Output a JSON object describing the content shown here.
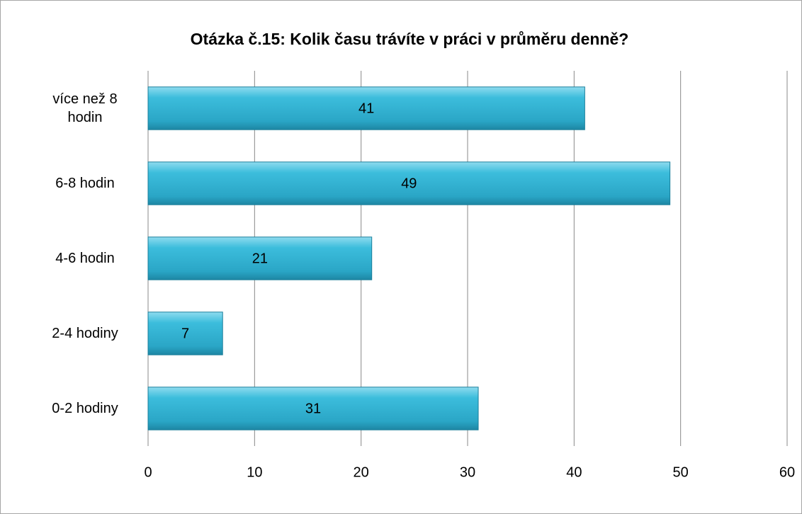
{
  "chart_data": {
    "type": "bar",
    "orientation": "horizontal",
    "title": "Otázka č.15: Kolik času trávíte v práci v průměru denně?",
    "categories": [
      "více než 8 hodin",
      "6-8 hodin",
      "4-6 hodin",
      "2-4 hodiny",
      "0-2 hodiny"
    ],
    "values": [
      41,
      49,
      21,
      7,
      31
    ],
    "color": "#31b4d4",
    "xlim": [
      0,
      60
    ],
    "xticks": [
      0,
      10,
      20,
      30,
      40,
      50,
      60
    ],
    "grid": true
  }
}
